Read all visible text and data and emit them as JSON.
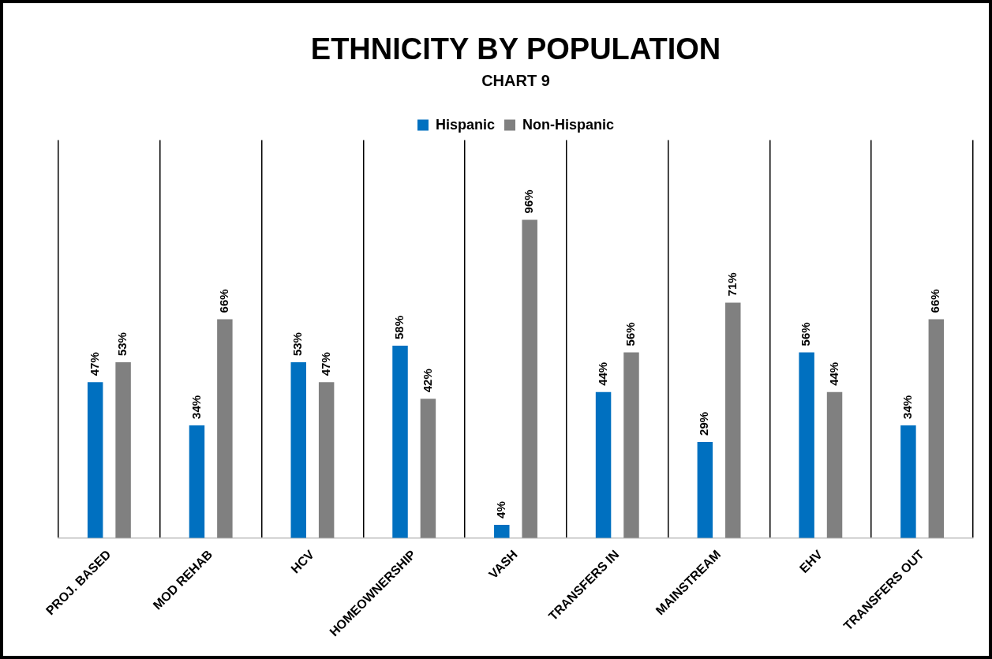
{
  "chart_data": {
    "type": "bar",
    "title": "ETHNICITY BY POPULATION",
    "subtitle": "CHART 9",
    "categories": [
      "PROJ. BASED",
      "MOD REHAB",
      "HCV",
      "HOMEOWNERSHIP",
      "VASH",
      "TRANSFERS IN",
      "MAINSTREAM",
      "EHV",
      "TRANSFERS OUT"
    ],
    "series": [
      {
        "name": "Hispanic",
        "color": "#0070c0",
        "values": [
          47,
          34,
          53,
          58,
          4,
          44,
          29,
          56,
          34
        ],
        "value_labels": [
          "47%",
          "34%",
          "53%",
          "58%",
          "4%",
          "44%",
          "29%",
          "56%",
          "34%"
        ]
      },
      {
        "name": "Non-Hispanic",
        "color": "#808080",
        "values": [
          53,
          66,
          47,
          42,
          96,
          56,
          71,
          44,
          66
        ],
        "value_labels": [
          "53%",
          "66%",
          "47%",
          "42%",
          "96%",
          "56%",
          "71%",
          "44%",
          "66%"
        ]
      }
    ],
    "grid": "x",
    "legend": "top",
    "tick_labels": "x"
  }
}
